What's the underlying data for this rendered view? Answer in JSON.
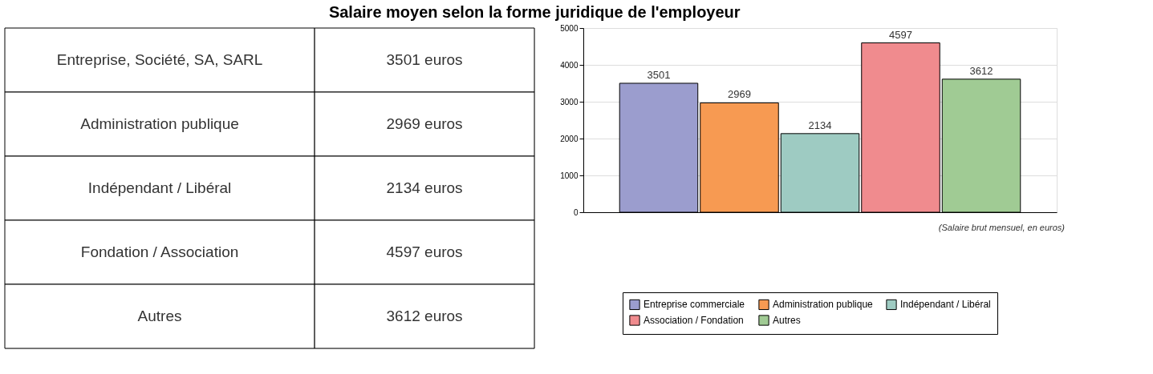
{
  "chart_data": [
    {
      "type": "other",
      "title": "Salaire moyen selon la forme juridique de l'employeur",
      "annotations": [
        "Entreprise, Société, SA, SARL",
        "3501 euros",
        "Administration publique",
        "2969 euros",
        "Indépendant / Libéral",
        "2134 euros",
        "Fondation / Association",
        "4597 euros",
        "Autres",
        "3612 euros"
      ]
    },
    {
      "type": "bar",
      "categories": [
        null,
        null,
        null,
        null,
        null
      ],
      "series": [
        {
          "name": "Entreprise commerciale",
          "color": "#9b9dce",
          "values": [
            3501,
            null,
            null,
            null,
            null
          ]
        },
        {
          "name": "Administration publique",
          "color": "#f79a52",
          "values": [
            null,
            2969,
            null,
            null,
            null
          ]
        },
        {
          "name": "Indépendant / Libéral",
          "color": "#9ecbc2",
          "values": [
            null,
            null,
            2134,
            null,
            null
          ]
        },
        {
          "name": "Association / Fondation",
          "color": "#f08b8e",
          "values": [
            null,
            null,
            null,
            4597,
            null
          ]
        },
        {
          "name": "Autres",
          "color": "#a0cb94",
          "values": [
            null,
            null,
            null,
            null,
            3612
          ]
        }
      ],
      "ylim": [
        0,
        5000
      ],
      "yticks": [
        0,
        1000,
        2000,
        3000,
        4000,
        5000
      ],
      "grid": "y",
      "legend": "bottom",
      "data_labels": true,
      "tick_labels": "y",
      "annotations": [
        "(Salaire brut mensuel, en euros)"
      ]
    }
  ]
}
